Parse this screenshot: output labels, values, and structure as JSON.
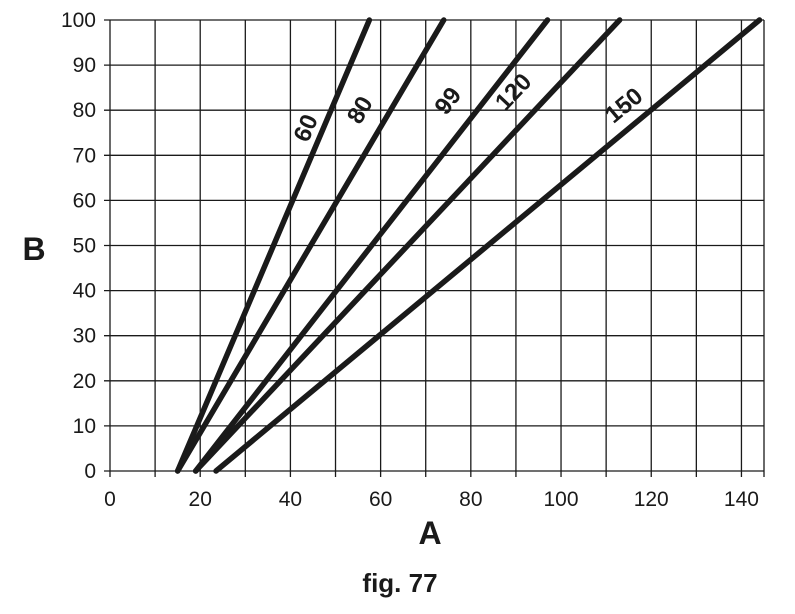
{
  "chart_data": {
    "type": "line",
    "title": "",
    "xlabel": "A",
    "ylabel": "B",
    "caption": "fig. 77",
    "xlim": [
      0,
      145
    ],
    "ylim": [
      0,
      100
    ],
    "x_ticks": [
      0,
      20,
      40,
      60,
      80,
      100,
      120,
      140
    ],
    "y_ticks": [
      0,
      10,
      20,
      30,
      40,
      50,
      60,
      70,
      80,
      90,
      100
    ],
    "x_tick_labels": [
      "0",
      "20",
      "40",
      "60",
      "80",
      "100",
      "120",
      "140"
    ],
    "y_tick_labels": [
      "0",
      "10",
      "20",
      "30",
      "40",
      "50",
      "60",
      "70",
      "80",
      "90",
      "100"
    ],
    "x_grid_step": 10,
    "y_grid_step": 10,
    "grid": true,
    "line_color": "#1a1a1a",
    "grid_color": "#1a1a1a",
    "series": [
      {
        "name": "60",
        "label_at": [
          43.5,
          76
        ],
        "points": [
          [
            15,
            0
          ],
          [
            57.5,
            100
          ]
        ]
      },
      {
        "name": "80",
        "label_at": [
          55.5,
          80
        ],
        "points": [
          [
            15,
            0
          ],
          [
            74,
            100
          ]
        ]
      },
      {
        "name": "99",
        "label_at": [
          75,
          82
        ],
        "points": [
          [
            19,
            0
          ],
          [
            97,
            100
          ]
        ]
      },
      {
        "name": "120",
        "label_at": [
          89.5,
          84
        ],
        "points": [
          [
            19,
            0
          ],
          [
            113,
            100
          ]
        ]
      },
      {
        "name": "150",
        "label_at": [
          114,
          81
        ],
        "points": [
          [
            23.5,
            0
          ],
          [
            144,
            100
          ]
        ]
      }
    ]
  }
}
